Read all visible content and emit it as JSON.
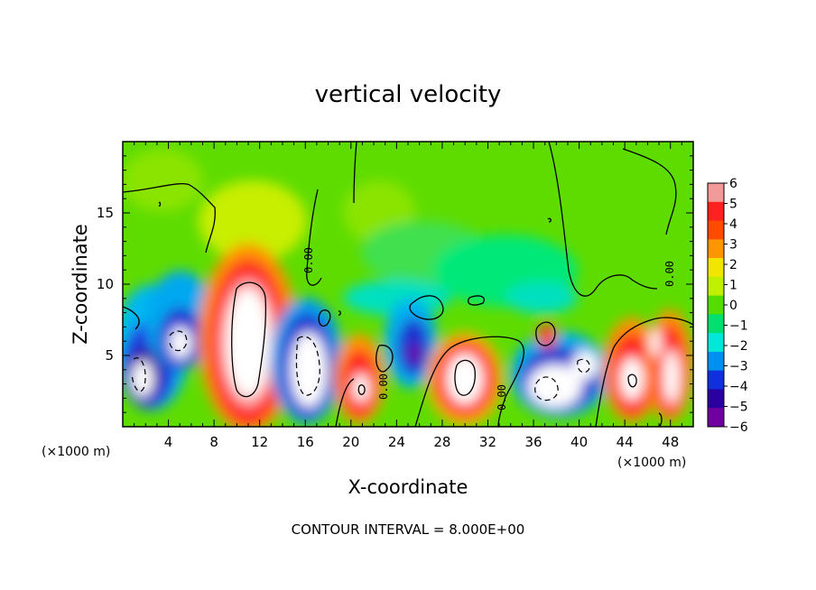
{
  "chart_data": {
    "type": "heatmap",
    "title": "vertical velocity",
    "xlabel": "X-coordinate",
    "ylabel": "Z-coordinate",
    "x_unit": "(×1000 m)",
    "y_unit": "(×1000 m)",
    "xlim": [
      0,
      50
    ],
    "ylim": [
      0,
      20
    ],
    "x_ticks": [
      4,
      8,
      12,
      16,
      20,
      24,
      28,
      32,
      36,
      40,
      44,
      48
    ],
    "y_ticks": [
      5,
      10,
      15
    ],
    "x_tick_labels": [
      "4",
      "8",
      "12",
      "16",
      "20",
      "24",
      "28",
      "32",
      "36",
      "40",
      "44",
      "48"
    ],
    "y_tick_labels": [
      "5",
      "10",
      "15"
    ],
    "colorbar": {
      "min": -6,
      "max": 6,
      "ticks": [
        6,
        5,
        4,
        3,
        2,
        1,
        0,
        -1,
        -2,
        -3,
        -4,
        -5,
        -6
      ],
      "tick_labels": [
        "6",
        "5",
        "4",
        "3",
        "2",
        "1",
        "0",
        "−1",
        "−2",
        "−3",
        "−4",
        "−5",
        "−6"
      ],
      "colors": [
        "#f29a9a",
        "#ff2020",
        "#ff4a00",
        "#ff9600",
        "#f0e600",
        "#bff000",
        "#55dd00",
        "#00e070",
        "#00e8d8",
        "#0090f0",
        "#1030e0",
        "#2a00a0",
        "#7000a0"
      ]
    },
    "contour_interval_text": "CONTOUR INTERVAL = 8.000E+00",
    "contour_label": "0.00",
    "features": [
      {
        "x": 1.5,
        "z": 3.0,
        "w": -9
      },
      {
        "x": 4.5,
        "z": 5.0,
        "w": -7
      },
      {
        "x": 11.0,
        "z": 5.5,
        "w": 10
      },
      {
        "x": 15.5,
        "z": 4.0,
        "w": -8
      },
      {
        "x": 20.5,
        "z": 2.5,
        "w": 6
      },
      {
        "x": 25.5,
        "z": 5.0,
        "w": -5
      },
      {
        "x": 29.5,
        "z": 3.0,
        "w": 7
      },
      {
        "x": 37.5,
        "z": 3.0,
        "w": -7
      },
      {
        "x": 44.0,
        "z": 3.5,
        "w": 8
      },
      {
        "x": 47.5,
        "z": 4.0,
        "w": 6
      }
    ]
  }
}
